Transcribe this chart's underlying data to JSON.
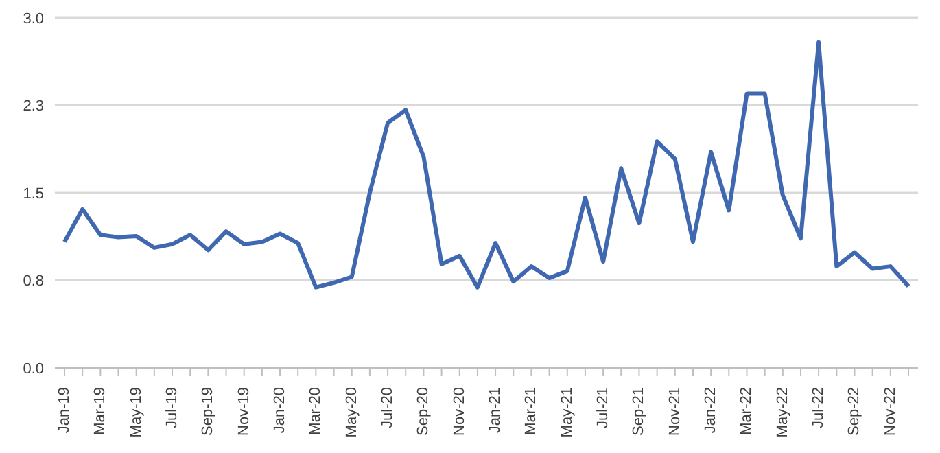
{
  "chart_data": {
    "type": "line",
    "categories": [
      "Jan-19",
      null,
      "Mar-19",
      null,
      "May-19",
      null,
      "Jul-19",
      null,
      "Sep-19",
      null,
      "Nov-19",
      null,
      "Jan-20",
      null,
      "Mar-20",
      null,
      "May-20",
      null,
      "Jul-20",
      null,
      "Sep-20",
      null,
      "Nov-20",
      null,
      "Jan-21",
      null,
      "Mar-21",
      null,
      "May-21",
      null,
      "Jul-21",
      null,
      "Sep-21",
      null,
      "Nov-21",
      null,
      "Jan-22",
      null,
      "Mar-22",
      null,
      "May-22",
      null,
      "Jul-22",
      null,
      "Sep-22",
      null,
      "Nov-22",
      null
    ],
    "series": [
      {
        "color": "#4068b0",
        "values": [
          1.08,
          1.36,
          1.14,
          1.12,
          1.13,
          1.03,
          1.06,
          1.14,
          1.01,
          1.17,
          1.06,
          1.08,
          1.15,
          1.07,
          0.69,
          0.73,
          0.78,
          1.5,
          2.1,
          2.21,
          1.81,
          0.89,
          0.96,
          0.69,
          1.07,
          0.74,
          0.87,
          0.77,
          0.83,
          1.46,
          0.91,
          1.71,
          1.24,
          1.94,
          1.79,
          1.08,
          1.85,
          1.35,
          2.35,
          2.35,
          1.48,
          1.11,
          2.79,
          0.87,
          0.99,
          0.85,
          0.87,
          0.7
        ]
      }
    ],
    "ylim": [
      0,
      3
    ],
    "yticks": [
      {
        "value": 0,
        "label": "0.0"
      },
      {
        "value": 0.75,
        "label": "0.8"
      },
      {
        "value": 1.5,
        "label": "1.5"
      },
      {
        "value": 2.25,
        "label": "2.3"
      },
      {
        "value": 3,
        "label": "3.0"
      }
    ],
    "grid": "y",
    "legend": false,
    "marker": "none",
    "line_style": "solid"
  }
}
